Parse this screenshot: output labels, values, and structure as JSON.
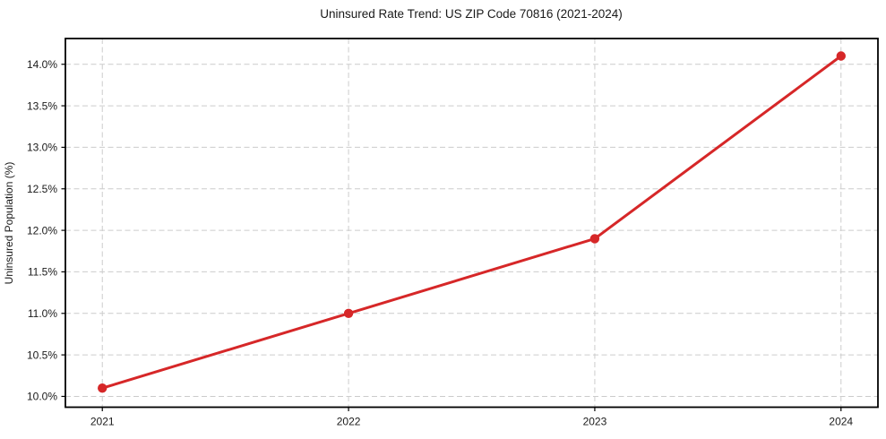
{
  "chart_data": {
    "type": "line",
    "title": "Uninsured Rate Trend: US ZIP Code 70816 (2021-2024)",
    "xlabel": "",
    "ylabel": "Uninsured Population (%)",
    "x": [
      2021,
      2022,
      2023,
      2024
    ],
    "values": [
      10.1,
      11.0,
      11.9,
      14.1
    ],
    "x_tick_labels": [
      "2021",
      "2022",
      "2023",
      "2024"
    ],
    "y_ticks": [
      10.0,
      10.5,
      11.0,
      11.5,
      12.0,
      12.5,
      13.0,
      13.5,
      14.0
    ],
    "y_tick_labels": [
      "10.0%",
      "10.5%",
      "11.0%",
      "11.5%",
      "12.0%",
      "12.5%",
      "13.0%",
      "13.5%",
      "14.0%"
    ],
    "xlim": [
      2020.85,
      2024.15
    ],
    "ylim": [
      9.87,
      14.31
    ],
    "grid": true,
    "grid_style": "dashed",
    "legend": false,
    "line_color": "#d62728",
    "marker": "circle",
    "grid_color": "#cccccc",
    "spine_color": "#000000",
    "background": "#ffffff"
  }
}
